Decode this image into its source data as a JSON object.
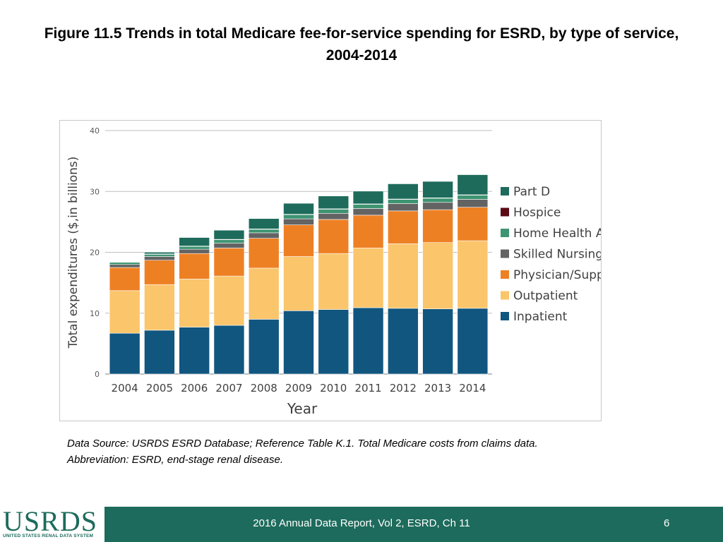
{
  "slide": {
    "title_line1": "Figure 11.5 Trends in total Medicare fee-for-service spending for ESRD, by type of service,",
    "title_line2": "2004-2014"
  },
  "chart_data": {
    "type": "bar",
    "stacked": true,
    "title": "",
    "xlabel": "Year",
    "ylabel": "Total expenditures ($,in billions)",
    "ylim": [
      0,
      40
    ],
    "yticks": [
      0,
      10,
      20,
      30,
      40
    ],
    "grid": true,
    "legend_position": "right",
    "categories": [
      "2004",
      "2005",
      "2006",
      "2007",
      "2008",
      "2009",
      "2010",
      "2011",
      "2012",
      "2013",
      "2014"
    ],
    "series": [
      {
        "name": "Inpatient",
        "color": "#11567f",
        "values": [
          6.7,
          7.2,
          7.7,
          8.0,
          9.0,
          10.4,
          10.6,
          10.9,
          10.8,
          10.7,
          10.8
        ]
      },
      {
        "name": "Outpatient",
        "color": "#fbc56b",
        "values": [
          7.0,
          7.5,
          7.9,
          8.1,
          8.4,
          8.9,
          9.2,
          9.8,
          10.6,
          10.9,
          11.1
        ]
      },
      {
        "name": "Physician/Supplier",
        "color": "#ee8024",
        "values": [
          3.8,
          4.0,
          4.2,
          4.6,
          4.9,
          5.2,
          5.6,
          5.4,
          5.4,
          5.4,
          5.5
        ]
      },
      {
        "name": "Skilled Nursing Facility",
        "color": "#636363",
        "values": [
          0.5,
          0.6,
          0.7,
          0.8,
          0.9,
          1.0,
          1.0,
          1.1,
          1.2,
          1.2,
          1.3
        ]
      },
      {
        "name": "Home Health Agency",
        "color": "#3f9472",
        "values": [
          0.4,
          0.4,
          0.5,
          0.6,
          0.6,
          0.7,
          0.7,
          0.7,
          0.7,
          0.7,
          0.7
        ]
      },
      {
        "name": "Hospice",
        "color": "#5a0a14",
        "values": [
          0.02,
          0.03,
          0.03,
          0.03,
          0.04,
          0.05,
          0.05,
          0.05,
          0.05,
          0.05,
          0.05
        ]
      },
      {
        "name": "Part D",
        "color": "#1e6b5c",
        "values": [
          0.0,
          0.3,
          1.4,
          1.5,
          1.7,
          1.8,
          2.1,
          2.1,
          2.5,
          2.7,
          3.3
        ]
      }
    ]
  },
  "source": {
    "line1": "Data Source: USRDS ESRD Database; Reference Table K.1. Total Medicare costs from claims data.",
    "line2": "Abbreviation: ESRD, end-stage renal disease."
  },
  "footer": {
    "logo_text": "USRDS",
    "logo_subtext": "UNITED STATES RENAL DATA SYSTEM",
    "report_label": "2016 Annual Data Report, Vol 2, ESRD, Ch 11",
    "page_number": "6",
    "background_color": "#1d6b5c"
  }
}
